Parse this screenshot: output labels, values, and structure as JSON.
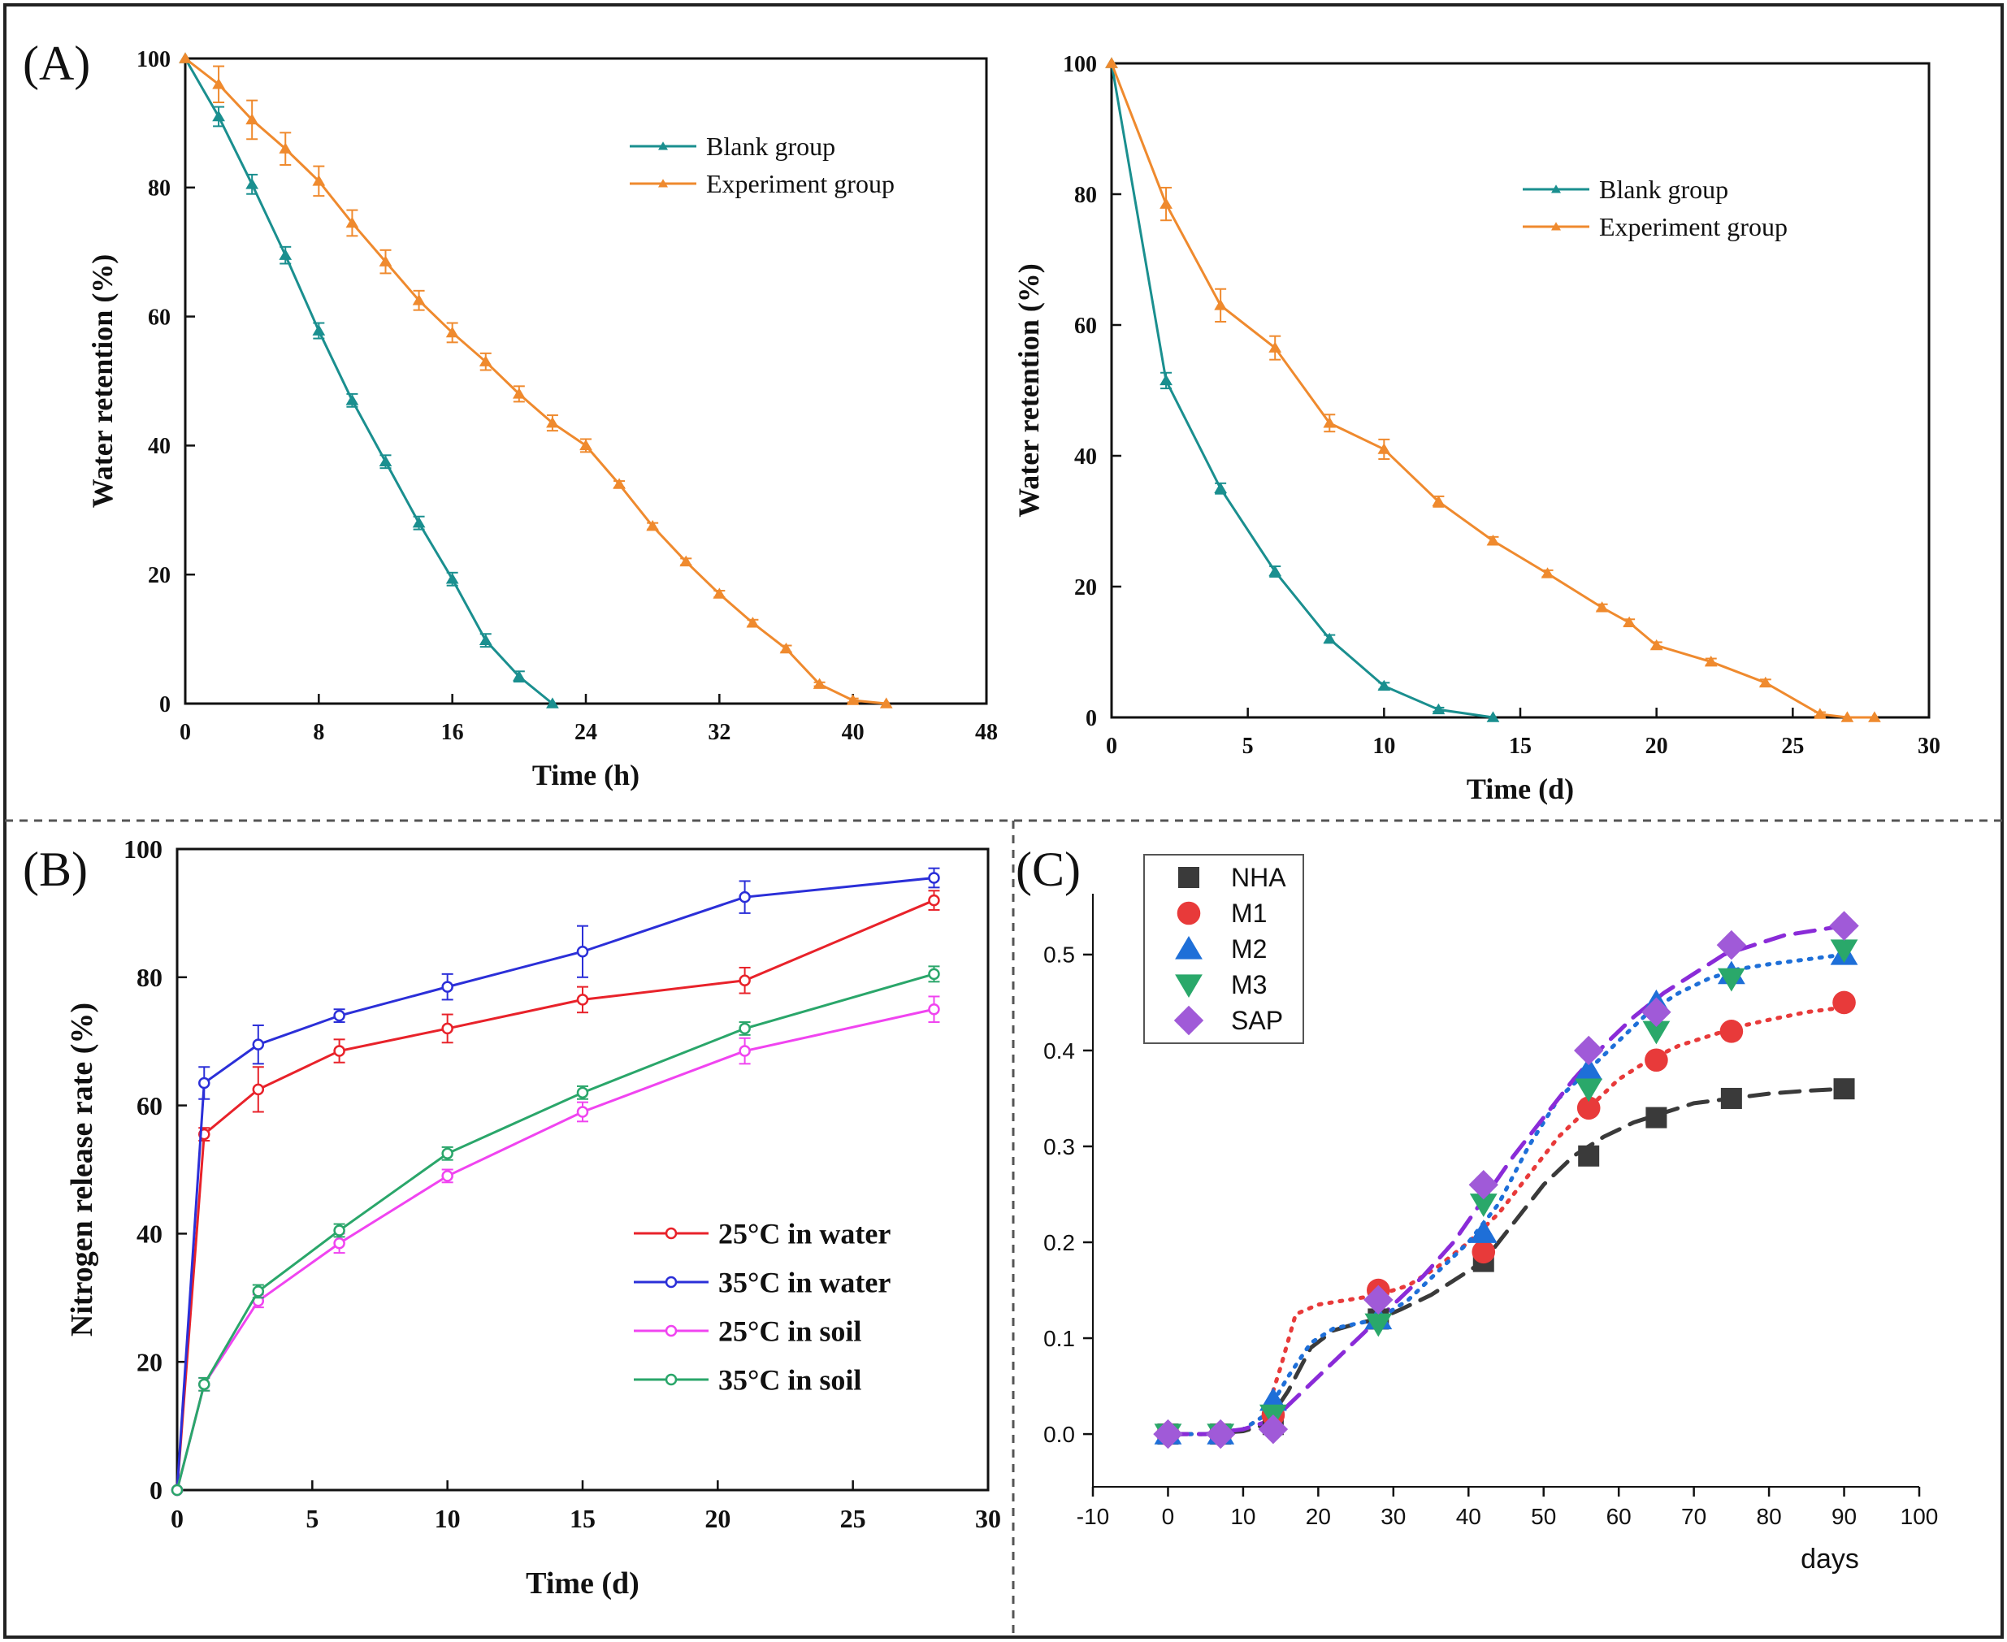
{
  "panel_labels": {
    "a": "(A)",
    "b": "(B)",
    "c": "(C)"
  },
  "colors": {
    "blank": "#1a8f8f",
    "experiment": "#ef8a2e",
    "w25": "#e8222a",
    "w35": "#2b2fd8",
    "s25": "#f044f0",
    "s35": "#2aa66a",
    "nha": "#3a3a3a",
    "m1": "#e83a3a",
    "m2": "#1e6fd8",
    "m3": "#2aa86a",
    "sap": "#a05ad8",
    "sap_line": "#8a2bd8"
  },
  "chart_data": [
    {
      "id": "a1",
      "type": "line",
      "title": "",
      "xlabel": "Time (h)",
      "ylabel": "Water retention (%)",
      "xlim": [
        0,
        48
      ],
      "ylim": [
        0,
        100
      ],
      "xticks": [
        0,
        8,
        16,
        24,
        32,
        40,
        48
      ],
      "yticks": [
        0,
        20,
        40,
        60,
        80,
        100
      ],
      "legend_position": "top-right",
      "series": [
        {
          "name": "Blank group",
          "color_key": "blank",
          "x": [
            0,
            2,
            4,
            6,
            8,
            10,
            12,
            14,
            16,
            18,
            20,
            22
          ],
          "y": [
            100,
            91,
            80.5,
            69.5,
            57.8,
            47,
            37.5,
            28,
            19.3,
            9.8,
            4.2,
            0
          ],
          "err": [
            0,
            1.5,
            1.5,
            1.3,
            1.2,
            1,
            1,
            1,
            1,
            1,
            0.8,
            0
          ]
        },
        {
          "name": "Experiment group",
          "color_key": "experiment",
          "x": [
            0,
            2,
            4,
            6,
            8,
            10,
            12,
            14,
            16,
            18,
            20,
            22,
            24,
            26,
            28,
            30,
            32,
            34,
            36,
            38,
            40,
            42
          ],
          "y": [
            100,
            96,
            90.5,
            86,
            81,
            74.5,
            68.5,
            62.5,
            57.5,
            53,
            48,
            43.5,
            40,
            34,
            27.5,
            22,
            17,
            12.5,
            8.5,
            3,
            0.5,
            0
          ],
          "err": [
            0,
            2.8,
            3,
            2.5,
            2.3,
            2,
            1.8,
            1.5,
            1.5,
            1.3,
            1.2,
            1.2,
            1,
            0.5,
            0.5,
            0.5,
            0.5,
            0.5,
            0.5,
            0.3,
            0.3,
            0
          ]
        }
      ]
    },
    {
      "id": "a2",
      "type": "line",
      "title": "",
      "xlabel": "Time (d)",
      "ylabel": "Water retention (%)",
      "xlim": [
        0,
        30
      ],
      "ylim": [
        0,
        100
      ],
      "xticks": [
        0,
        5,
        10,
        15,
        20,
        25,
        30
      ],
      "yticks": [
        0,
        20,
        40,
        60,
        80,
        100
      ],
      "legend_position": "top-right",
      "series": [
        {
          "name": "Blank group",
          "color_key": "blank",
          "x": [
            0,
            2,
            4,
            6,
            8,
            10,
            12,
            14
          ],
          "y": [
            100,
            51.5,
            35,
            22.3,
            12,
            4.8,
            1.2,
            0
          ],
          "err": [
            0,
            1.2,
            0.8,
            0.8,
            0.6,
            0.5,
            0.3,
            0
          ]
        },
        {
          "name": "Experiment group",
          "color_key": "experiment",
          "x": [
            0,
            2,
            4,
            6,
            8,
            10,
            12,
            14,
            16,
            18,
            19,
            20,
            22,
            24,
            26,
            27,
            28
          ],
          "y": [
            100,
            78.5,
            63,
            56.5,
            45,
            41,
            33,
            27,
            22,
            16.8,
            14.5,
            11,
            8.5,
            5.3,
            0.5,
            0,
            0
          ],
          "err": [
            0,
            2.5,
            2.5,
            1.8,
            1.3,
            1.5,
            0.8,
            0.6,
            0.5,
            0.5,
            0.5,
            0.5,
            0.5,
            0.5,
            0.3,
            0,
            0
          ]
        }
      ]
    },
    {
      "id": "b",
      "type": "line",
      "title": "",
      "xlabel": "Time (d)",
      "ylabel": "Nitrogen release rate (%)",
      "xlim": [
        0,
        30
      ],
      "ylim": [
        0,
        100
      ],
      "xticks": [
        0,
        5,
        10,
        15,
        20,
        25,
        30
      ],
      "yticks": [
        0,
        20,
        40,
        60,
        80,
        100
      ],
      "legend_position": "bottom-right",
      "series": [
        {
          "name": "25°C in water",
          "color_key": "w25",
          "x": [
            0,
            1,
            3,
            6,
            10,
            15,
            21,
            28
          ],
          "y": [
            0,
            55.5,
            62.5,
            68.5,
            72,
            76.5,
            79.5,
            92
          ],
          "err": [
            0,
            1,
            3.5,
            1.8,
            2.2,
            2,
            2,
            1.5
          ]
        },
        {
          "name": "35°C in water",
          "color_key": "w35",
          "x": [
            0,
            1,
            3,
            6,
            10,
            15,
            21,
            28
          ],
          "y": [
            0,
            63.5,
            69.5,
            74,
            78.5,
            84,
            92.5,
            95.5
          ],
          "err": [
            0,
            2.5,
            3,
            1,
            2,
            4,
            2.5,
            1.5
          ]
        },
        {
          "name": "25°C in soil",
          "color_key": "s25",
          "x": [
            0,
            1,
            3,
            6,
            10,
            15,
            21,
            28
          ],
          "y": [
            0,
            16.5,
            29.5,
            38.5,
            49,
            59,
            68.5,
            75
          ],
          "err": [
            0,
            1,
            1,
            1.5,
            1,
            1.5,
            2,
            2
          ]
        },
        {
          "name": "35°C in soil",
          "color_key": "s35",
          "x": [
            0,
            1,
            3,
            6,
            10,
            15,
            21,
            28
          ],
          "y": [
            0,
            16.5,
            31,
            40.5,
            52.5,
            62,
            72,
            80.5
          ],
          "err": [
            0,
            1,
            1,
            1,
            1,
            1,
            1,
            1.2
          ]
        }
      ]
    },
    {
      "id": "c",
      "type": "scatter",
      "title": "",
      "xlabel": "days",
      "ylabel": "",
      "xlim": [
        -10,
        100
      ],
      "ylim": [
        -0.055,
        0.555
      ],
      "xticks": [
        -10,
        0,
        10,
        20,
        30,
        40,
        50,
        60,
        70,
        80,
        90,
        100
      ],
      "yticks": [
        0.0,
        0.1,
        0.2,
        0.3,
        0.4,
        0.5
      ],
      "grid": false,
      "legend_position": "top-left",
      "series": [
        {
          "name": "NHA",
          "marker": "square",
          "color_key": "nha",
          "x": [
            0,
            7,
            14,
            28,
            42,
            56,
            65,
            75,
            90
          ],
          "y": [
            0.0,
            0.0,
            0.01,
            0.12,
            0.18,
            0.29,
            0.33,
            0.35,
            0.36
          ]
        },
        {
          "name": "M1",
          "marker": "circle",
          "color_key": "m1",
          "x": [
            0,
            7,
            14,
            28,
            42,
            56,
            65,
            75,
            90
          ],
          "y": [
            0.0,
            0.0,
            0.02,
            0.15,
            0.19,
            0.34,
            0.39,
            0.42,
            0.45
          ]
        },
        {
          "name": "M2",
          "marker": "triangle",
          "color_key": "m2",
          "x": [
            0,
            7,
            14,
            28,
            42,
            56,
            65,
            75,
            90
          ],
          "y": [
            0.0,
            0.0,
            0.035,
            0.12,
            0.21,
            0.38,
            0.45,
            0.48,
            0.5
          ]
        },
        {
          "name": "M3",
          "marker": "triangle-down",
          "color_key": "m3",
          "x": [
            0,
            7,
            14,
            28,
            42,
            56,
            65,
            75,
            90
          ],
          "y": [
            0.0,
            0.0,
            0.02,
            0.115,
            0.24,
            0.36,
            0.42,
            0.475,
            0.505
          ]
        },
        {
          "name": "SAP",
          "marker": "diamond",
          "color_key": "sap",
          "x": [
            0,
            7,
            14,
            28,
            42,
            56,
            65,
            75,
            90
          ],
          "y": [
            0.0,
            0.0,
            0.005,
            0.14,
            0.26,
            0.4,
            0.44,
            0.51,
            0.53
          ]
        }
      ],
      "fit_curves": [
        {
          "name": "NHA fit",
          "color_key": "nha",
          "dash": "long",
          "x": [
            0,
            5,
            10,
            13,
            16,
            19,
            22,
            25,
            28,
            31,
            35,
            38,
            42,
            46,
            50,
            54,
            58,
            62,
            66,
            70,
            75,
            80,
            85,
            90
          ],
          "y": [
            0,
            0,
            0.003,
            0.01,
            0.045,
            0.09,
            0.108,
            0.115,
            0.12,
            0.13,
            0.145,
            0.16,
            0.18,
            0.22,
            0.26,
            0.29,
            0.31,
            0.325,
            0.335,
            0.345,
            0.35,
            0.355,
            0.358,
            0.36
          ]
        },
        {
          "name": "M1 fit",
          "color_key": "m1",
          "dash": "dot",
          "x": [
            0,
            5,
            10,
            13,
            15,
            17,
            20,
            24,
            28,
            32,
            36,
            40,
            44,
            48,
            52,
            56,
            60,
            64,
            68,
            72,
            76,
            80,
            85,
            90
          ],
          "y": [
            0,
            0,
            0.005,
            0.02,
            0.07,
            0.125,
            0.135,
            0.14,
            0.145,
            0.155,
            0.175,
            0.2,
            0.23,
            0.27,
            0.31,
            0.34,
            0.37,
            0.39,
            0.405,
            0.415,
            0.425,
            0.432,
            0.44,
            0.445
          ]
        },
        {
          "name": "M2 fit",
          "color_key": "m2",
          "dash": "dot",
          "x": [
            0,
            5,
            10,
            13,
            16,
            19,
            22,
            25,
            28,
            32,
            36,
            40,
            44,
            48,
            52,
            56,
            60,
            64,
            68,
            72,
            76,
            80,
            85,
            90
          ],
          "y": [
            0,
            0,
            0.005,
            0.02,
            0.06,
            0.095,
            0.11,
            0.115,
            0.12,
            0.14,
            0.17,
            0.2,
            0.24,
            0.3,
            0.35,
            0.38,
            0.41,
            0.44,
            0.46,
            0.475,
            0.485,
            0.49,
            0.495,
            0.5
          ]
        },
        {
          "name": "SAP fit",
          "color_key": "sap_line",
          "dash": "long",
          "x": [
            0,
            5,
            10,
            14,
            18,
            22,
            26,
            30,
            34,
            38,
            42,
            46,
            50,
            54,
            58,
            62,
            66,
            70,
            74,
            78,
            82,
            86,
            90
          ],
          "y": [
            0,
            0,
            0.005,
            0.015,
            0.045,
            0.075,
            0.105,
            0.135,
            0.165,
            0.2,
            0.245,
            0.29,
            0.33,
            0.37,
            0.405,
            0.435,
            0.46,
            0.48,
            0.5,
            0.51,
            0.52,
            0.525,
            0.53
          ]
        }
      ]
    }
  ]
}
